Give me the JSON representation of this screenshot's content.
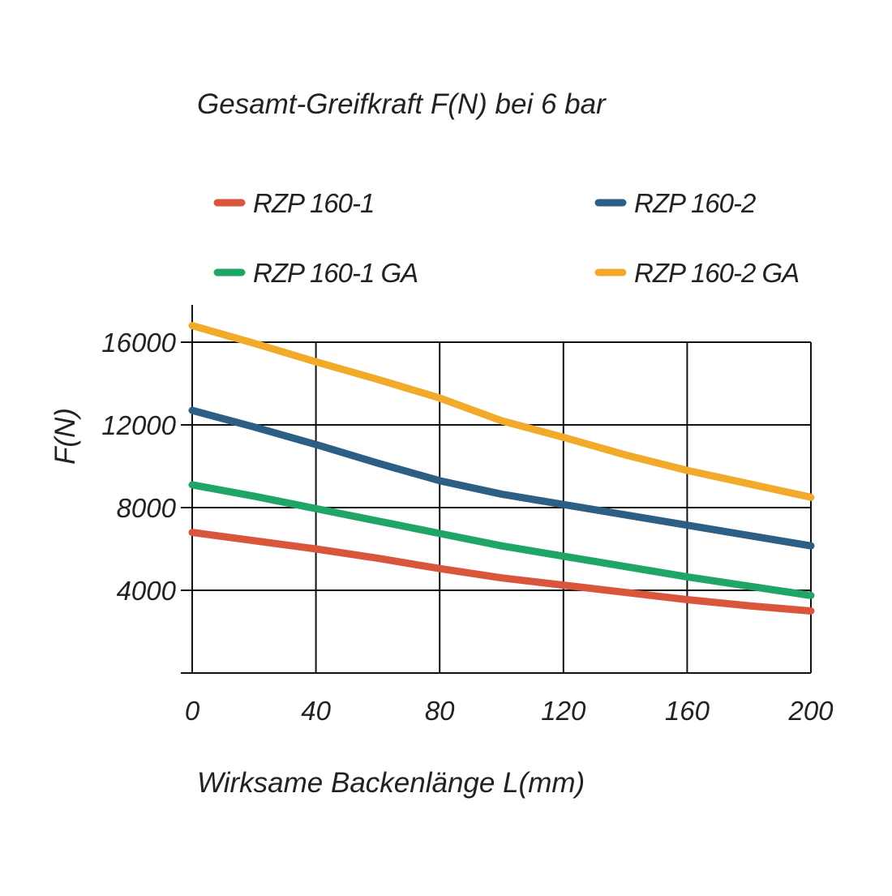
{
  "chart_data": {
    "type": "line",
    "title": "Gesamt-Greifkraft F(N) bei 6 bar",
    "xlabel": "Wirksame Backenlänge L(mm)",
    "ylabel": "F(N)",
    "xlim": [
      0,
      200
    ],
    "ylim": [
      0,
      16000
    ],
    "x_ticks": [
      {
        "value": 0,
        "label": "0"
      },
      {
        "value": 40,
        "label": "40"
      },
      {
        "value": 80,
        "label": "80"
      },
      {
        "value": 120,
        "label": "120"
      },
      {
        "value": 160,
        "label": "160"
      },
      {
        "value": 200,
        "label": "200"
      }
    ],
    "y_ticks": [
      {
        "value": 4000,
        "label": "4000"
      },
      {
        "value": 8000,
        "label": "8000"
      },
      {
        "value": 12000,
        "label": "12000"
      },
      {
        "value": 16000,
        "label": "16000"
      }
    ],
    "grid": true,
    "legend_position": "top",
    "x": [
      0,
      20,
      40,
      60,
      80,
      100,
      120,
      140,
      160,
      180,
      200
    ],
    "series": [
      {
        "name": "RZP 160-1",
        "color": "#D9553B",
        "values": [
          6800,
          6400,
          6000,
          5550,
          5050,
          4600,
          4250,
          3900,
          3550,
          3250,
          3000
        ]
      },
      {
        "name": "RZP 160-2",
        "color": "#2D5F84",
        "values": [
          12700,
          11900,
          11050,
          10150,
          9300,
          8650,
          8150,
          7650,
          7150,
          6650,
          6150
        ]
      },
      {
        "name": "RZP 160-1 GA",
        "color": "#1FA565",
        "values": [
          9100,
          8550,
          7950,
          7350,
          6750,
          6150,
          5650,
          5150,
          4650,
          4200,
          3750
        ]
      },
      {
        "name": "RZP 160-2 GA",
        "color": "#F2AA2A",
        "values": [
          16800,
          15950,
          15050,
          14200,
          13300,
          12200,
          11400,
          10550,
          9800,
          9150,
          8500
        ]
      }
    ]
  }
}
